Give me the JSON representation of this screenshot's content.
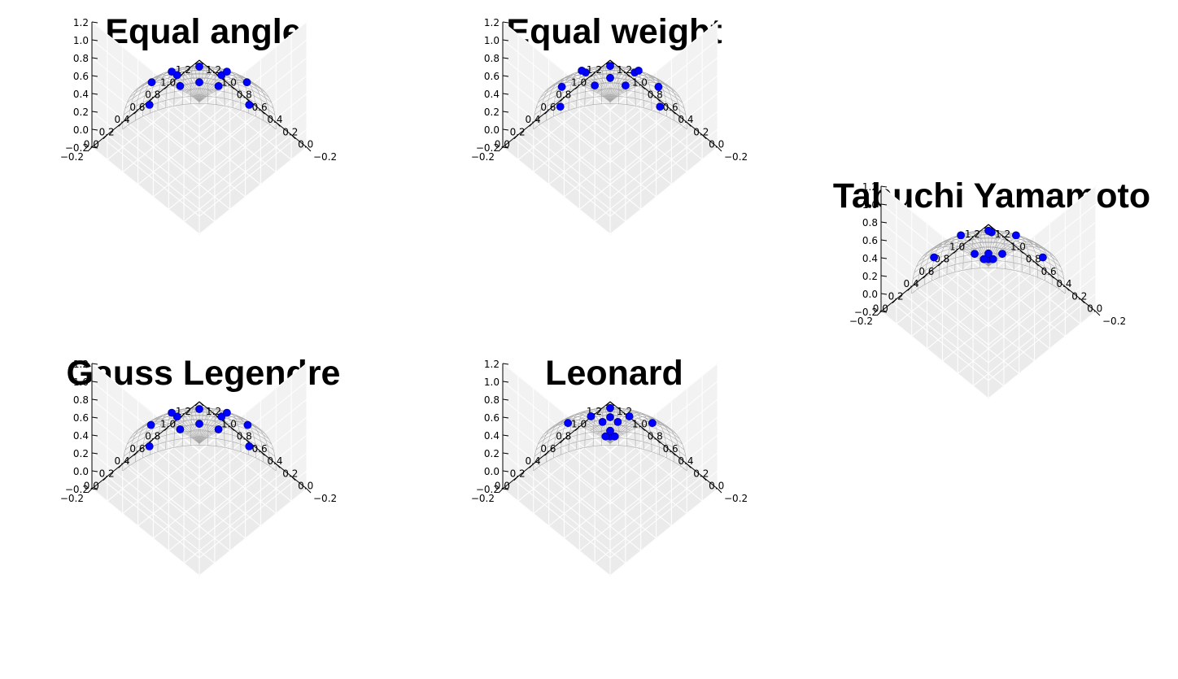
{
  "axis": {
    "ticks": [
      -0.2,
      0.0,
      0.2,
      0.4,
      0.6,
      0.8,
      1.0,
      1.2
    ],
    "tick_labels": [
      "−0.2",
      "0.0",
      "0.2",
      "0.4",
      "0.6",
      "0.8",
      "1.0",
      "1.2"
    ],
    "xlim": [
      -0.2,
      1.2
    ],
    "ylim": [
      -0.2,
      1.2
    ],
    "zlim": [
      -0.2,
      1.2
    ]
  },
  "colors": {
    "points": "#0000ff",
    "pane": "#f2f2f2",
    "wire": "#9a9a9a"
  },
  "chart_data": [
    {
      "type": "scatter",
      "projection": "3d",
      "surface": "unit-sphere-octant wireframe",
      "title": "Equal angle",
      "points": [
        [
          0.18,
          0.18,
          0.97
        ],
        [
          0.44,
          0.15,
          0.89
        ],
        [
          0.15,
          0.44,
          0.89
        ],
        [
          0.23,
          0.59,
          0.77
        ],
        [
          0.59,
          0.23,
          0.77
        ],
        [
          0.45,
          0.45,
          0.77
        ],
        [
          0.23,
          0.85,
          0.47
        ],
        [
          0.85,
          0.23,
          0.47
        ],
        [
          0.55,
          0.8,
          0.24
        ],
        [
          0.8,
          0.55,
          0.24
        ],
        [
          0.3,
          0.95,
          0.1
        ],
        [
          0.95,
          0.3,
          0.1
        ]
      ]
    },
    {
      "type": "scatter",
      "projection": "3d",
      "surface": "unit-sphere-octant wireframe",
      "title": "Equal weight",
      "points": [
        [
          0.23,
          0.23,
          0.95
        ],
        [
          0.52,
          0.2,
          0.83
        ],
        [
          0.2,
          0.52,
          0.83
        ],
        [
          0.29,
          0.66,
          0.69
        ],
        [
          0.66,
          0.29,
          0.69
        ],
        [
          0.52,
          0.52,
          0.68
        ],
        [
          0.26,
          0.89,
          0.37
        ],
        [
          0.89,
          0.26,
          0.37
        ],
        [
          0.58,
          0.78,
          0.24
        ],
        [
          0.78,
          0.58,
          0.24
        ],
        [
          0.3,
          0.95,
          0.08
        ],
        [
          0.95,
          0.3,
          0.08
        ]
      ]
    },
    {
      "type": "scatter",
      "projection": "3d",
      "surface": "unit-sphere-octant wireframe",
      "title": "Gauss Legendre",
      "points": [
        [
          0.18,
          0.18,
          0.97
        ],
        [
          0.44,
          0.15,
          0.89
        ],
        [
          0.15,
          0.44,
          0.89
        ],
        [
          0.24,
          0.6,
          0.76
        ],
        [
          0.6,
          0.24,
          0.76
        ],
        [
          0.45,
          0.45,
          0.76
        ],
        [
          0.23,
          0.86,
          0.45
        ],
        [
          0.86,
          0.23,
          0.45
        ],
        [
          0.55,
          0.8,
          0.22
        ],
        [
          0.8,
          0.55,
          0.22
        ],
        [
          0.3,
          0.95,
          0.1
        ],
        [
          0.95,
          0.3,
          0.1
        ]
      ]
    },
    {
      "type": "scatter",
      "projection": "3d",
      "surface": "unit-sphere-octant wireframe",
      "title": "Leonard",
      "points": [
        [
          0.06,
          0.06,
          0.996
        ],
        [
          0.09,
          0.03,
          0.996
        ],
        [
          0.03,
          0.09,
          0.996
        ],
        [
          0.11,
          0.11,
          0.99
        ],
        [
          0.27,
          0.27,
          0.92
        ],
        [
          0.43,
          0.18,
          0.88
        ],
        [
          0.18,
          0.43,
          0.88
        ],
        [
          0.48,
          0.48,
          0.73
        ],
        [
          0.3,
          0.85,
          0.43
        ],
        [
          0.85,
          0.3,
          0.43
        ],
        [
          0.62,
          0.72,
          0.31
        ],
        [
          0.72,
          0.62,
          0.31
        ]
      ]
    },
    {
      "type": "scatter",
      "projection": "3d",
      "surface": "unit-sphere-octant wireframe",
      "title": "Tabuchi Yamamoto",
      "points": [
        [
          0.06,
          0.06,
          0.996
        ],
        [
          0.09,
          0.03,
          0.996
        ],
        [
          0.03,
          0.09,
          0.996
        ],
        [
          0.11,
          0.11,
          0.99
        ],
        [
          0.22,
          0.58,
          0.79
        ],
        [
          0.58,
          0.22,
          0.79
        ],
        [
          0.39,
          0.43,
          0.81
        ],
        [
          0.48,
          0.48,
          0.73
        ],
        [
          0.22,
          0.93,
          0.3
        ],
        [
          0.93,
          0.22,
          0.3
        ],
        [
          0.6,
          0.78,
          0.18
        ],
        [
          0.78,
          0.6,
          0.18
        ]
      ]
    }
  ]
}
